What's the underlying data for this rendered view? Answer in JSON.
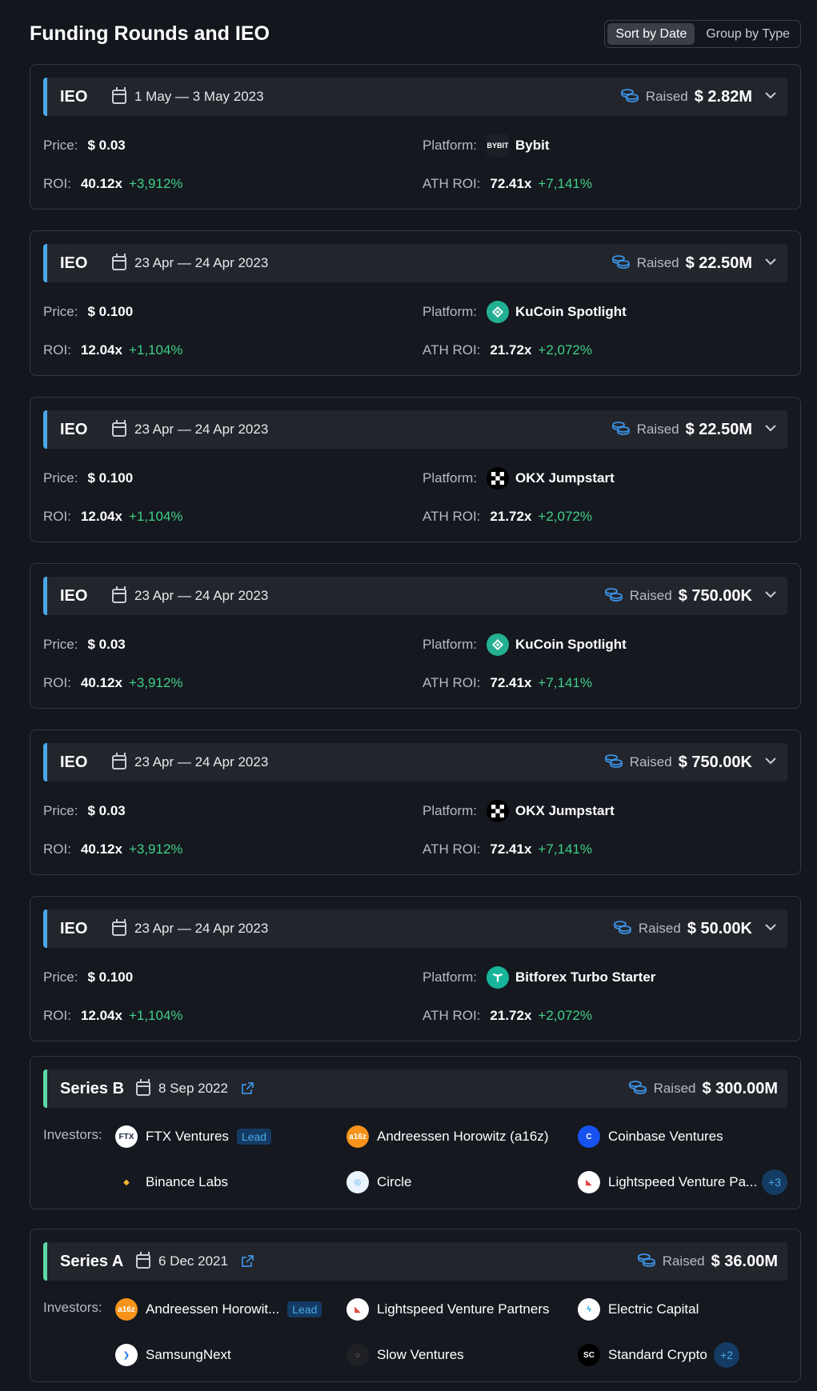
{
  "page": {
    "title": "Funding Rounds and IEO",
    "sort_options": [
      "Sort by Date",
      "Group by Type"
    ]
  },
  "colors": {
    "accent_ieo": "#4aa8e8",
    "accent_series": "#5fd6a8",
    "positive": "#3fd089",
    "lead_badge": "#143b63"
  },
  "labels": {
    "price": "Price:",
    "platform": "Platform:",
    "roi": "ROI:",
    "ath_roi": "ATH ROI:",
    "raised": "Raised",
    "investors": "Investors:",
    "lead": "Lead"
  },
  "ieo": [
    {
      "type": "IEO",
      "date": "1 May — 3 May 2023",
      "raised": "$ 2.82M",
      "price": "$ 0.03",
      "platform": "Bybit",
      "platform_icon": "bybit-icon",
      "roi": "40.12x",
      "roi_pct": "+3,912%",
      "ath_roi": "72.41x",
      "ath_pct": "+7,141%"
    },
    {
      "type": "IEO",
      "date": "23 Apr — 24 Apr 2023",
      "raised": "$ 22.50M",
      "price": "$ 0.100",
      "platform": "KuCoin Spotlight",
      "platform_icon": "kucoin-icon",
      "roi": "12.04x",
      "roi_pct": "+1,104%",
      "ath_roi": "21.72x",
      "ath_pct": "+2,072%"
    },
    {
      "type": "IEO",
      "date": "23 Apr — 24 Apr 2023",
      "raised": "$ 22.50M",
      "price": "$ 0.100",
      "platform": "OKX Jumpstart",
      "platform_icon": "okx-icon",
      "roi": "12.04x",
      "roi_pct": "+1,104%",
      "ath_roi": "21.72x",
      "ath_pct": "+2,072%"
    },
    {
      "type": "IEO",
      "date": "23 Apr — 24 Apr 2023",
      "raised": "$ 750.00K",
      "price": "$ 0.03",
      "platform": "KuCoin Spotlight",
      "platform_icon": "kucoin-icon",
      "roi": "40.12x",
      "roi_pct": "+3,912%",
      "ath_roi": "72.41x",
      "ath_pct": "+7,141%"
    },
    {
      "type": "IEO",
      "date": "23 Apr — 24 Apr 2023",
      "raised": "$ 750.00K",
      "price": "$ 0.03",
      "platform": "OKX Jumpstart",
      "platform_icon": "okx-icon",
      "roi": "40.12x",
      "roi_pct": "+3,912%",
      "ath_roi": "72.41x",
      "ath_pct": "+7,141%"
    },
    {
      "type": "IEO",
      "date": "23 Apr — 24 Apr 2023",
      "raised": "$ 50.00K",
      "price": "$ 0.100",
      "platform": "Bitforex Turbo Starter",
      "platform_icon": "bitforex-icon",
      "roi": "12.04x",
      "roi_pct": "+1,104%",
      "ath_roi": "21.72x",
      "ath_pct": "+2,072%"
    }
  ],
  "series": [
    {
      "type": "Series B",
      "date": "8 Sep 2022",
      "raised": "$ 300.00M",
      "more": "+3",
      "investors": [
        {
          "name": "FTX Ventures",
          "icon": "ftx-icon",
          "lead": true
        },
        {
          "name": "Andreessen Horowitz (a16z)",
          "icon": "a16z-icon",
          "lead": false
        },
        {
          "name": "Coinbase Ventures",
          "icon": "coinbase-icon",
          "lead": false
        },
        {
          "name": "Binance Labs",
          "icon": "binance-icon",
          "lead": false
        },
        {
          "name": "Circle",
          "icon": "circle-icon",
          "lead": false
        },
        {
          "name": "Lightspeed Venture Pa...",
          "icon": "lightspeed-icon",
          "lead": false
        }
      ]
    },
    {
      "type": "Series A",
      "date": "6 Dec 2021",
      "raised": "$ 36.00M",
      "more": "+2",
      "investors": [
        {
          "name": "Andreessen Horowit...",
          "icon": "a16z-icon",
          "lead": true
        },
        {
          "name": "Lightspeed Venture Partners",
          "icon": "lightspeed-icon",
          "lead": false
        },
        {
          "name": "Electric Capital",
          "icon": "electric-capital-icon",
          "lead": false
        },
        {
          "name": "SamsungNext",
          "icon": "samsungnext-icon",
          "lead": false
        },
        {
          "name": "Slow Ventures",
          "icon": "slow-ventures-icon",
          "lead": false
        },
        {
          "name": "Standard Crypto",
          "icon": "standard-crypto-icon",
          "lead": false
        }
      ]
    }
  ]
}
